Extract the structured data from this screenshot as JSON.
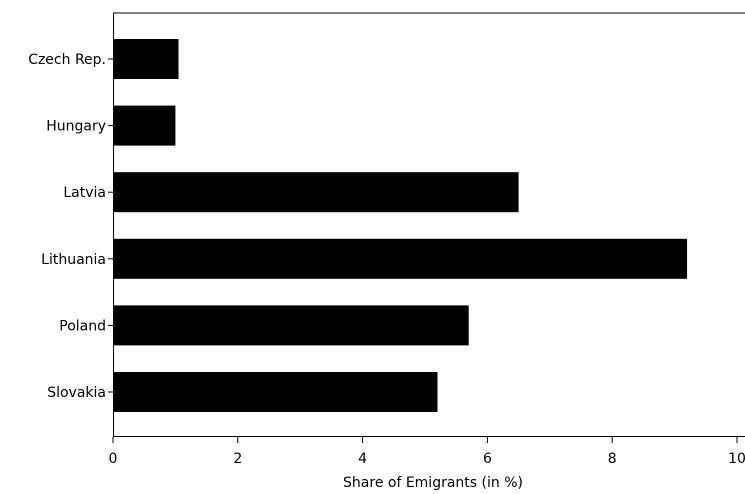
{
  "chart_data": {
    "type": "bar",
    "orientation": "horizontal",
    "categories": [
      "Czech Rep.",
      "Hungary",
      "Latvia",
      "Lithuania",
      "Poland",
      "Slovakia"
    ],
    "values": [
      1.05,
      1.0,
      6.5,
      9.2,
      5.7,
      5.2
    ],
    "xlabel": "Share of Emigrants (in %)",
    "ylabel": "",
    "xlim": [
      0,
      10
    ],
    "xticks": [
      "0",
      "2",
      "4",
      "6",
      "8",
      "10"
    ],
    "grid": false,
    "bar_color": "#000000"
  }
}
